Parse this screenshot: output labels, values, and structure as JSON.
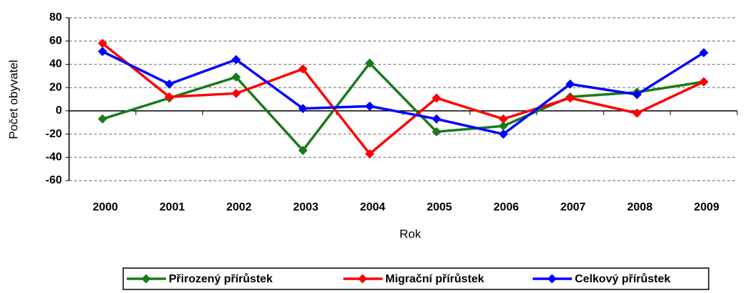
{
  "chart_data": {
    "type": "line",
    "x_label": "Rok",
    "y_label": "Počet obyvatel",
    "categories": [
      "2000",
      "2001",
      "2002",
      "2003",
      "2004",
      "2005",
      "2006",
      "2007",
      "2008",
      "2009"
    ],
    "series": [
      {
        "name": "Přirozený přírůstek",
        "color": "#1a7a1a",
        "values": [
          -7,
          11,
          29,
          -34,
          41,
          -18,
          -13,
          12,
          16,
          25
        ]
      },
      {
        "name": "Migrační přírůstek",
        "color": "#ff0000",
        "values": [
          58,
          12,
          15,
          36,
          -37,
          11,
          -7,
          11,
          -2,
          25
        ]
      },
      {
        "name": "Celkový přírůstek",
        "color": "#0000ff",
        "values": [
          51,
          23,
          44,
          2,
          4,
          -7,
          -20,
          23,
          14,
          50
        ]
      }
    ],
    "ylim": [
      -60,
      80
    ],
    "yticks": [
      -60,
      -40,
      -20,
      0,
      20,
      40,
      60,
      80
    ],
    "grid": true,
    "legend": "bottom"
  }
}
